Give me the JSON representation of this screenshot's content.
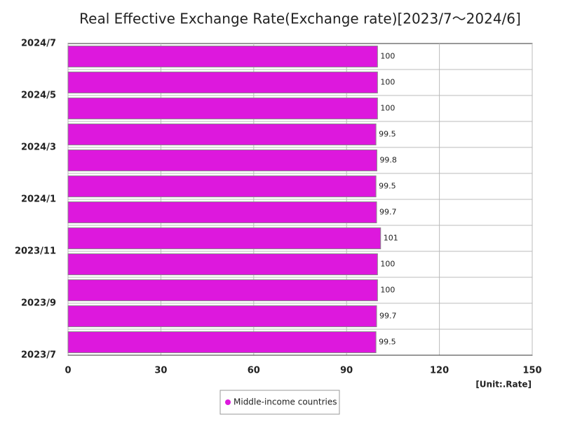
{
  "chart_data": {
    "type": "bar",
    "orientation": "horizontal",
    "title": "Real Effective Exchange Rate(Exchange rate)[2023/7～2024/6]",
    "category_ticks": [
      "2023/7",
      "2023/9",
      "2023/11",
      "2024/1",
      "2024/3",
      "2024/5",
      "2024/7"
    ],
    "series": [
      {
        "name": "Middle-income countries",
        "color": "#dd18dd",
        "values": [
          99.5,
          99.7,
          100,
          100,
          101,
          99.7,
          99.5,
          99.8,
          99.5,
          100,
          100,
          100
        ]
      }
    ],
    "xlim": [
      0,
      150
    ],
    "xticks": [
      0,
      30,
      60,
      90,
      120,
      150
    ],
    "grid": true,
    "unit_label": "[Unit:.Rate]"
  }
}
